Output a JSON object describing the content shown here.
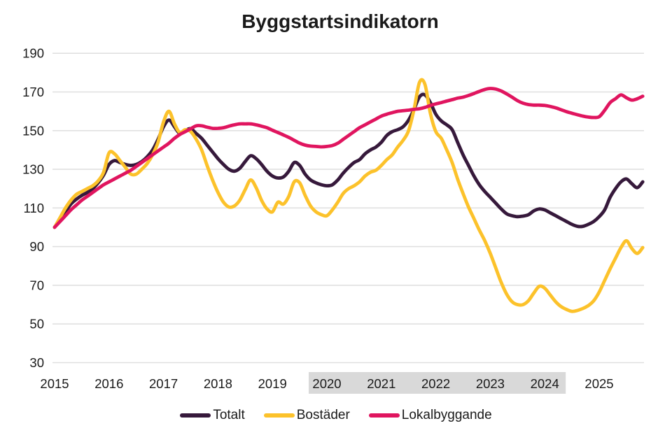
{
  "title": "Byggstartsindikatorn",
  "colors": {
    "text": "#1A1A1A",
    "grid": "#E0E0E0",
    "highlight_band": "#D9D9D9",
    "totalt": "#36193B",
    "bostader": "#FCC22B",
    "lokalbyggande": "#E0155F"
  },
  "chart_data": {
    "type": "line",
    "title": "Byggstartsindikatorn",
    "xlabel": "",
    "ylabel": "",
    "ylim": [
      30,
      190
    ],
    "yticks": [
      30,
      50,
      70,
      90,
      110,
      130,
      150,
      170,
      190
    ],
    "xticks": [
      2015,
      2016,
      2017,
      2018,
      2019,
      2020,
      2021,
      2022,
      2023,
      2024,
      2025
    ],
    "xtick_highlight": {
      "from": 2020,
      "to": 2024,
      "color": "#D9D9D9"
    },
    "grid": "horizontal",
    "legend_position": "bottom",
    "x": [
      2015.0,
      2015.1,
      2015.2,
      2015.3,
      2015.4,
      2015.5,
      2015.6,
      2015.7,
      2015.8,
      2015.9,
      2016.0,
      2016.1,
      2016.2,
      2016.3,
      2016.4,
      2016.5,
      2016.6,
      2016.7,
      2016.8,
      2016.9,
      2017.0,
      2017.1,
      2017.2,
      2017.3,
      2017.4,
      2017.5,
      2017.6,
      2017.7,
      2017.8,
      2017.9,
      2018.0,
      2018.1,
      2018.2,
      2018.3,
      2018.4,
      2018.5,
      2018.6,
      2018.7,
      2018.8,
      2018.9,
      2019.0,
      2019.1,
      2019.2,
      2019.3,
      2019.4,
      2019.5,
      2019.6,
      2019.7,
      2019.8,
      2019.9,
      2020.0,
      2020.1,
      2020.2,
      2020.3,
      2020.4,
      2020.5,
      2020.6,
      2020.7,
      2020.8,
      2020.9,
      2021.0,
      2021.1,
      2021.2,
      2021.3,
      2021.4,
      2021.5,
      2021.6,
      2021.7,
      2021.8,
      2021.9,
      2022.0,
      2022.1,
      2022.2,
      2022.3,
      2022.4,
      2022.5,
      2022.6,
      2022.7,
      2022.8,
      2022.9,
      2023.0,
      2023.1,
      2023.2,
      2023.3,
      2023.4,
      2023.5,
      2023.6,
      2023.7,
      2023.8,
      2023.9,
      2024.0,
      2024.1,
      2024.2,
      2024.3,
      2024.4,
      2024.5,
      2024.6,
      2024.7,
      2024.8,
      2024.9,
      2025.0,
      2025.1,
      2025.2,
      2025.3,
      2025.4,
      2025.5,
      2025.6,
      2025.7,
      2025.8
    ],
    "series": [
      {
        "name": "Totalt",
        "color": "#36193B",
        "values": [
          100,
          104,
          108,
          112,
          114.5,
          116.5,
          118,
          120,
          123,
          127,
          132.5,
          134.5,
          133.5,
          132.5,
          132,
          132.5,
          134,
          136.5,
          140,
          145.5,
          152,
          155.5,
          152,
          148.5,
          150,
          151,
          148.5,
          146,
          142.5,
          139,
          135.5,
          132.5,
          130,
          129,
          130.5,
          134,
          137,
          135.5,
          132.5,
          129,
          126.5,
          125.5,
          126,
          129,
          133.5,
          132,
          127.5,
          124.5,
          123,
          122,
          121.5,
          122,
          124.5,
          128,
          131,
          133.5,
          135,
          138,
          140,
          141.5,
          144,
          147.5,
          149.5,
          150.5,
          152,
          155.5,
          161,
          167.5,
          168.5,
          164.5,
          158.5,
          155,
          153,
          150.5,
          144,
          137.5,
          132,
          126.5,
          122,
          118.5,
          115.5,
          112.5,
          109.5,
          107,
          106,
          105.5,
          105.8,
          106.5,
          108.5,
          109.5,
          109,
          107.5,
          106,
          104.5,
          103,
          101.5,
          100.5,
          100.5,
          101.5,
          103,
          105.5,
          109,
          115.5,
          120,
          123.5,
          125,
          122.5,
          120.5,
          123.5
        ]
      },
      {
        "name": "Bostäder",
        "color": "#FCC22B",
        "values": [
          100,
          105,
          110,
          114,
          117,
          118.5,
          120,
          121.5,
          124,
          128.5,
          138.5,
          138,
          134.5,
          131,
          127.5,
          127.5,
          130,
          133,
          137.5,
          144,
          154.5,
          160,
          153.5,
          149,
          150.5,
          149.5,
          145.5,
          140,
          132,
          124.5,
          118,
          113,
          110.5,
          111,
          114,
          119.5,
          124.5,
          120.5,
          114,
          109.5,
          108,
          113,
          112,
          116,
          123.5,
          123,
          116.5,
          111,
          108,
          106.5,
          106,
          109,
          113,
          117.5,
          120,
          121.5,
          123.5,
          126.5,
          128.5,
          129.5,
          132,
          135,
          137.5,
          141.5,
          145,
          150,
          161,
          175,
          174,
          159,
          149.5,
          146,
          140,
          133.5,
          125,
          117.5,
          110.5,
          104.5,
          98.5,
          93,
          86.5,
          79,
          71.5,
          65.5,
          61.5,
          60,
          60,
          62,
          66,
          69.5,
          68.5,
          65,
          61.5,
          59,
          57.5,
          56.5,
          57,
          58,
          59.5,
          62,
          66.5,
          72.5,
          78.5,
          84,
          89.5,
          93,
          89,
          86.5,
          89.5
        ]
      },
      {
        "name": "Lokalbyggande",
        "color": "#E0155F",
        "values": [
          100,
          103,
          106,
          109,
          111.5,
          114,
          116,
          118,
          120,
          122,
          123.5,
          125,
          126.5,
          128,
          129.5,
          131.5,
          133.5,
          135.5,
          137.5,
          139.5,
          141.5,
          143.5,
          146,
          148,
          149.5,
          151,
          152.5,
          152.5,
          151.8,
          151.2,
          151.2,
          151.5,
          152.3,
          153,
          153.5,
          153.5,
          153.5,
          153,
          152.3,
          151.5,
          150.2,
          149,
          147.8,
          146.5,
          145,
          143.5,
          142.5,
          142,
          141.8,
          141.6,
          141.8,
          142.3,
          143.5,
          145.5,
          147.5,
          149.5,
          151.5,
          153,
          154.5,
          156,
          157.5,
          158.5,
          159.3,
          160,
          160.3,
          160.6,
          161,
          161.3,
          162,
          163,
          163.8,
          164.5,
          165.3,
          166,
          166.8,
          167.3,
          168.2,
          169.2,
          170.3,
          171.3,
          171.8,
          171.5,
          170.5,
          169,
          167.3,
          165.5,
          164.2,
          163.5,
          163.2,
          163.2,
          163,
          162.5,
          161.8,
          160.8,
          159.8,
          159,
          158.2,
          157.5,
          157,
          156.8,
          157.2,
          160.5,
          164.5,
          166.5,
          168.5,
          167,
          165.8,
          166.5,
          167.8
        ]
      }
    ]
  }
}
